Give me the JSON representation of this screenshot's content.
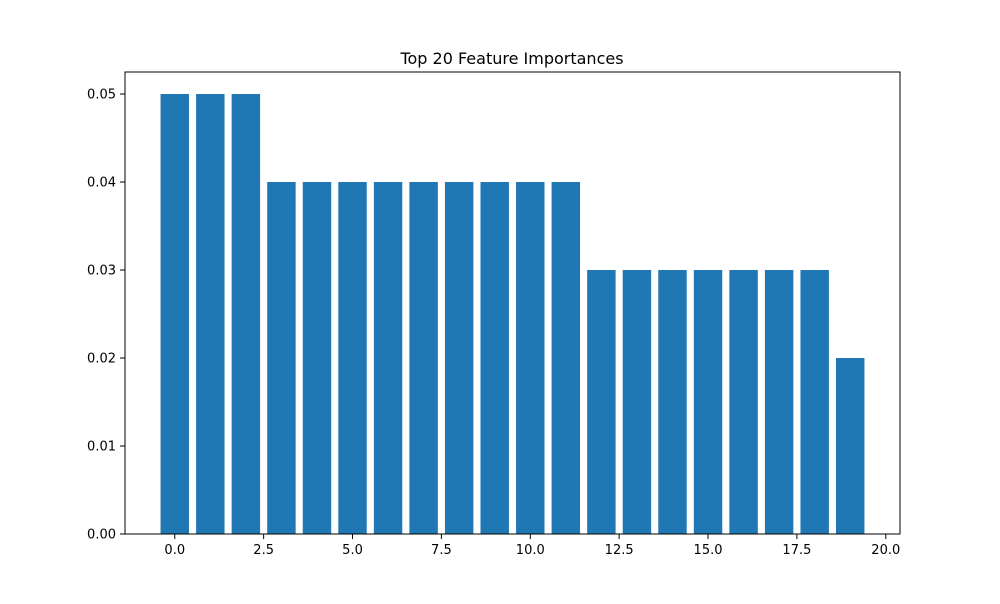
{
  "colors": {
    "bar": "#1f77b4",
    "axis": "#000000",
    "background": "#ffffff"
  },
  "chart_data": {
    "type": "bar",
    "title": "Top 20 Feature Importances",
    "xlabel": "",
    "ylabel": "",
    "x": [
      0,
      1,
      2,
      3,
      4,
      5,
      6,
      7,
      8,
      9,
      10,
      11,
      12,
      13,
      14,
      15,
      16,
      17,
      18,
      19
    ],
    "values": [
      0.05,
      0.05,
      0.05,
      0.04,
      0.04,
      0.04,
      0.04,
      0.04,
      0.04,
      0.04,
      0.04,
      0.04,
      0.03,
      0.03,
      0.03,
      0.03,
      0.03,
      0.03,
      0.03,
      0.02
    ],
    "xlim": [
      -0.5,
      19.5
    ],
    "ylim": [
      0,
      0.05
    ],
    "xticks": [
      "0.0",
      "2.5",
      "5.0",
      "7.5",
      "10.0",
      "12.5",
      "15.0",
      "17.5",
      "20.0"
    ],
    "yticks": [
      "0.00",
      "0.01",
      "0.02",
      "0.03",
      "0.04",
      "0.05"
    ],
    "grid": false,
    "legend": "none"
  }
}
